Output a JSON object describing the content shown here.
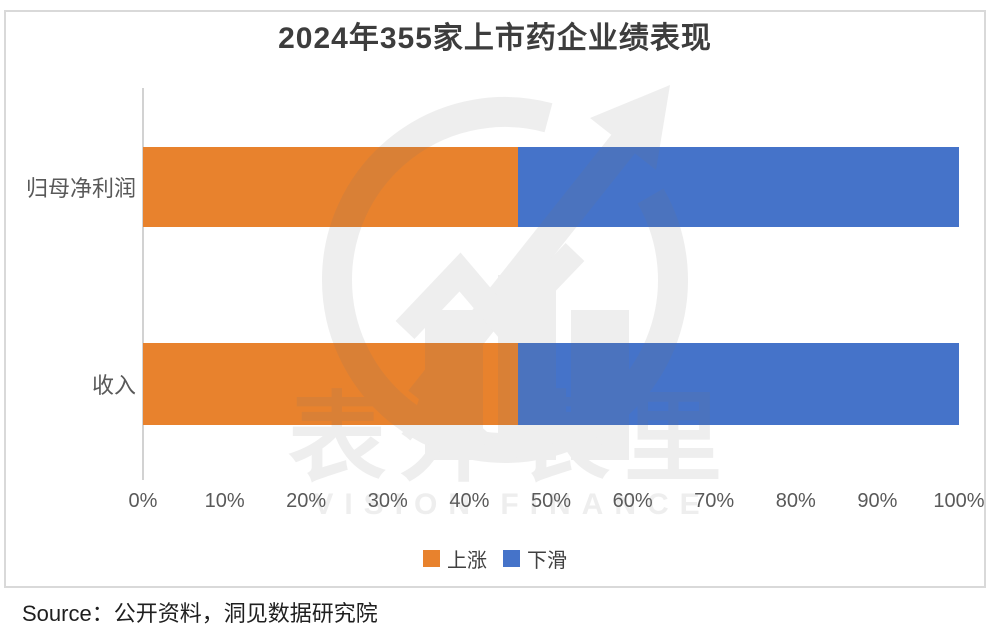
{
  "chart_data": {
    "type": "bar",
    "orientation": "horizontal",
    "stacked": true,
    "title": "2024年355家上市药企业绩表现",
    "categories": [
      "归母净利润",
      "收入"
    ],
    "series": [
      {
        "name": "上涨",
        "color": "#E8822D",
        "values": [
          46,
          46
        ]
      },
      {
        "name": "下滑",
        "color": "#4573C9",
        "values": [
          54,
          54
        ]
      }
    ],
    "value_unit": "%",
    "xlim": [
      0,
      100
    ],
    "xticks": [
      "0%",
      "10%",
      "20%",
      "30%",
      "40%",
      "50%",
      "60%",
      "70%",
      "80%",
      "90%",
      "100%"
    ],
    "legend_position": "bottom",
    "grid": false
  },
  "watermark": {
    "brand_cn": "表外表里",
    "brand_en": "VISION FINANCE"
  },
  "source": {
    "text": "Source：公开资料，洞见数据研究院"
  },
  "colors": {
    "border": "#d9d9d9",
    "axis_line": "#d2d2d2",
    "title_text": "#3d3d3d",
    "label_text": "#595959",
    "watermark_gray": "#777777"
  }
}
